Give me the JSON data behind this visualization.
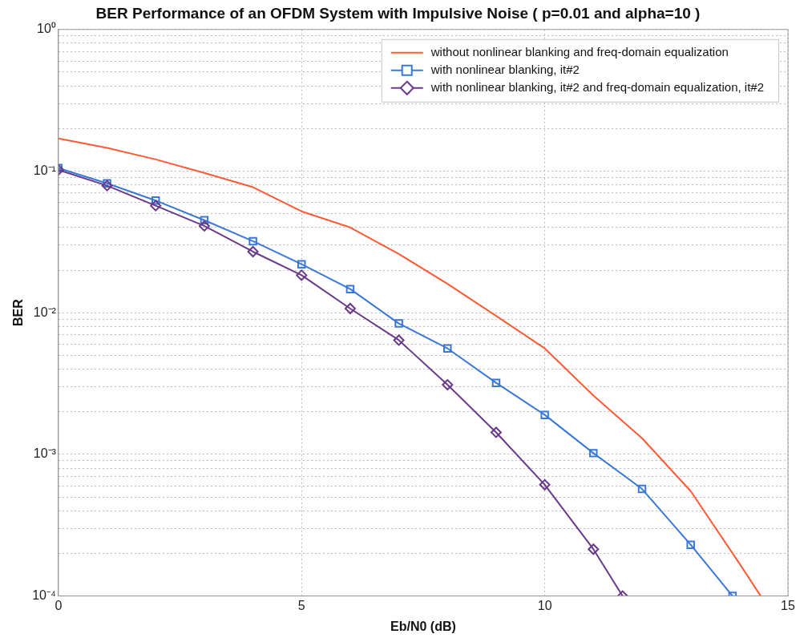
{
  "chart_data": {
    "type": "line",
    "title": "BER Performance of an OFDM System with Impulsive Noise ( p=0.01 and alpha=10 )",
    "xlabel": "Eb/N0 (dB)",
    "ylabel": "BER",
    "xlim": [
      0,
      15
    ],
    "xticks": [
      0,
      5,
      10,
      15
    ],
    "ylim": [
      0.0001,
      1
    ],
    "log": "y",
    "yticks": [
      {
        "value": 0.0001,
        "label": "10⁻⁴"
      },
      {
        "value": 0.0002,
        "label": null
      },
      {
        "value": 0.0003,
        "label": null
      },
      {
        "value": 0.0004,
        "label": null
      },
      {
        "value": 0.0005,
        "label": null
      },
      {
        "value": 0.0006,
        "label": null
      },
      {
        "value": 0.0007,
        "label": null
      },
      {
        "value": 0.0008,
        "label": null
      },
      {
        "value": 0.0009,
        "label": null
      },
      {
        "value": 0.001,
        "label": "10⁻³"
      },
      {
        "value": 0.002,
        "label": null
      },
      {
        "value": 0.003,
        "label": null
      },
      {
        "value": 0.004,
        "label": null
      },
      {
        "value": 0.005,
        "label": null
      },
      {
        "value": 0.006,
        "label": null
      },
      {
        "value": 0.007,
        "label": null
      },
      {
        "value": 0.008,
        "label": null
      },
      {
        "value": 0.009,
        "label": null
      },
      {
        "value": 0.01,
        "label": "10⁻²"
      },
      {
        "value": 0.02,
        "label": null
      },
      {
        "value": 0.03,
        "label": null
      },
      {
        "value": 0.04,
        "label": null
      },
      {
        "value": 0.05,
        "label": null
      },
      {
        "value": 0.06,
        "label": null
      },
      {
        "value": 0.07,
        "label": null
      },
      {
        "value": 0.08,
        "label": null
      },
      {
        "value": 0.09,
        "label": null
      },
      {
        "value": 0.1,
        "label": "10⁻¹"
      },
      {
        "value": 0.2,
        "label": null
      },
      {
        "value": 0.3,
        "label": null
      },
      {
        "value": 0.4,
        "label": null
      },
      {
        "value": 0.5,
        "label": null
      },
      {
        "value": 0.6,
        "label": null
      },
      {
        "value": 0.7,
        "label": null
      },
      {
        "value": 0.8,
        "label": null
      },
      {
        "value": 0.9,
        "label": null
      },
      {
        "value": 1,
        "label": "10⁰"
      }
    ],
    "grid": true,
    "legend": "top right",
    "line_style": "solid",
    "series": [
      {
        "name": "without nonlinear blanking and freq-domain equalization",
        "color": "#ff5a36",
        "marker": "none",
        "x": [
          0,
          1,
          2,
          3,
          4,
          5,
          6,
          7,
          8,
          9,
          10,
          11,
          12,
          13,
          14,
          14.44
        ],
        "values": [
          0.17,
          0.146,
          0.121,
          0.097,
          0.077,
          0.052,
          0.04,
          0.026,
          0.016,
          0.0095,
          0.0056,
          0.0026,
          0.0013,
          0.00055,
          0.00017,
          0.0001
        ]
      },
      {
        "name": "with nonlinear blanking, it#2",
        "color": "#3a78d8",
        "marker": "square",
        "x": [
          0,
          1,
          2,
          3,
          4,
          5,
          6,
          7,
          8,
          9,
          10,
          11,
          12,
          13,
          13.86
        ],
        "values": [
          0.105,
          0.082,
          0.062,
          0.045,
          0.032,
          0.022,
          0.0147,
          0.0084,
          0.0056,
          0.0032,
          0.0019,
          0.00102,
          0.00057,
          0.00023,
          0.0001
        ]
      },
      {
        "name": "with nonlinear blanking, it#2 and freq-domain equalization, it#2",
        "color": "#6a3a8a",
        "marker": "diamond",
        "x": [
          0,
          1,
          2,
          3,
          4,
          5,
          6,
          7,
          8,
          9,
          10,
          11,
          11.6
        ],
        "values": [
          0.102,
          0.079,
          0.057,
          0.041,
          0.027,
          0.0184,
          0.0107,
          0.0064,
          0.0031,
          0.00143,
          0.00061,
          0.000214,
          0.0001
        ]
      }
    ]
  }
}
